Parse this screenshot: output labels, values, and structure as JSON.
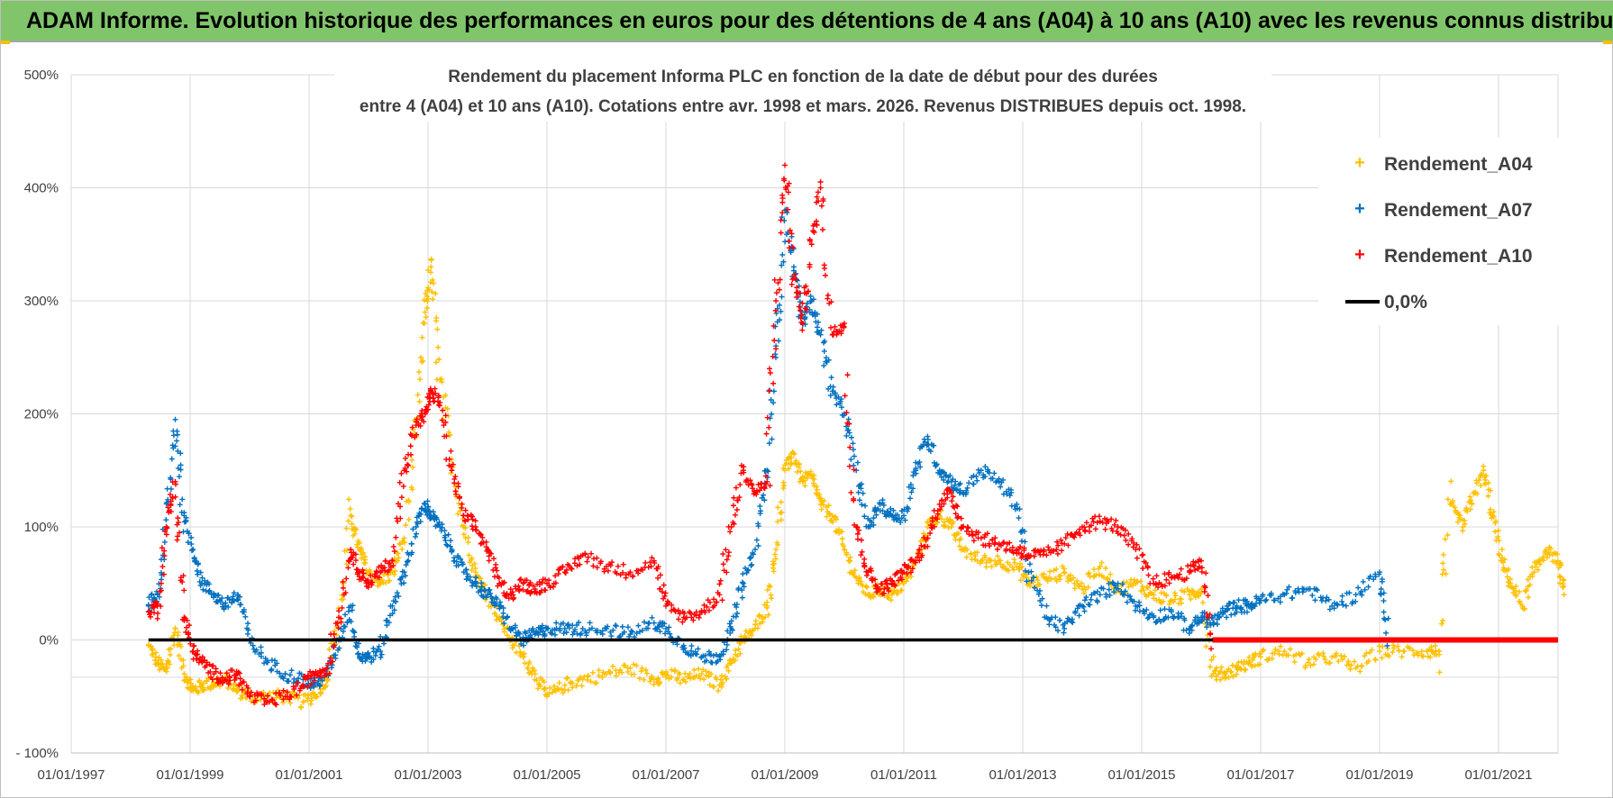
{
  "banner": {
    "text": "ADAM Informe. Evolution historique des performances en euros pour des détentions de 4 ans (A04) à 10 ans (A10) avec les revenus connus distribués"
  },
  "colors": {
    "a04": "#ffc000",
    "a07": "#0070c0",
    "a10": "#ff0000",
    "zero": "#000000",
    "banner": "#80c56a",
    "grid": "#d9d9d9"
  },
  "chart_data": {
    "type": "scatter",
    "title": [
      "Rendement du placement Informa PLC en fonction de la date de début pour des durées",
      "entre 4 (A04) et 10 ans (A10).  Cotations entre avr. 1998 et mars. 2026. Revenus DISTRIBUES depuis oct. 1998."
    ],
    "xlabel": "",
    "ylabel": "",
    "xlim": [
      1997.0,
      2022.0
    ],
    "ylim": [
      -100,
      500
    ],
    "x_ticks": [
      {
        "value": 1997.0,
        "label": "01/01/1997"
      },
      {
        "value": 1999.0,
        "label": "01/01/1999"
      },
      {
        "value": 2001.0,
        "label": "01/01/2001"
      },
      {
        "value": 2003.0,
        "label": "01/01/2003"
      },
      {
        "value": 2005.0,
        "label": "01/01/2005"
      },
      {
        "value": 2007.0,
        "label": "01/01/2007"
      },
      {
        "value": 2009.0,
        "label": "01/01/2009"
      },
      {
        "value": 2011.0,
        "label": "01/01/2011"
      },
      {
        "value": 2013.0,
        "label": "01/01/2013"
      },
      {
        "value": 2015.0,
        "label": "01/01/2015"
      },
      {
        "value": 2017.0,
        "label": "01/01/2017"
      },
      {
        "value": 2019.0,
        "label": "01/01/2019"
      },
      {
        "value": 2021.0,
        "label": "01/01/2021"
      }
    ],
    "y_ticks": [
      {
        "value": 500,
        "label": "500%"
      },
      {
        "value": 400,
        "label": "400%"
      },
      {
        "value": 300,
        "label": "300%"
      },
      {
        "value": 200,
        "label": "200%"
      },
      {
        "value": 100,
        "label": "100%"
      },
      {
        "value": 0,
        "label": "0%"
      },
      {
        "value": -100,
        "label": "- 100%"
      }
    ],
    "grid": true,
    "legend_position": "top-right",
    "series": [
      {
        "name": "Rendement_A04",
        "marker": "plus",
        "x": [
          1998.3,
          1998.45,
          1998.6,
          1998.75,
          1998.9,
          1999.05,
          1999.2,
          1999.4,
          1999.6,
          1999.8,
          2000.0,
          2000.3,
          2000.6,
          2000.9,
          2001.1,
          2001.3,
          2001.5,
          2001.7,
          2001.85,
          2002.0,
          2002.2,
          2002.4,
          2002.6,
          2002.8,
          2002.95,
          2003.05,
          2003.2,
          2003.4,
          2003.6,
          2003.8,
          2004.0,
          2004.2,
          2004.4,
          2004.6,
          2004.8,
          2005.0,
          2005.3,
          2005.6,
          2006.0,
          2006.4,
          2006.8,
          2007.0,
          2007.3,
          2007.6,
          2007.9,
          2008.1,
          2008.3,
          2008.5,
          2008.7,
          2008.85,
          2009.0,
          2009.15,
          2009.3,
          2009.45,
          2009.6,
          2009.8,
          2010.0,
          2010.2,
          2010.4,
          2010.6,
          2010.8,
          2011.0,
          2011.2,
          2011.4,
          2011.6,
          2011.8,
          2012.0,
          2012.3,
          2012.6,
          2012.9,
          2013.1,
          2013.4,
          2013.7,
          2014.0,
          2014.3,
          2014.6,
          2014.9,
          2015.2,
          2015.5,
          2015.8,
          2016.0,
          2016.2,
          2016.4,
          2016.6,
          2016.8,
          2017.0,
          2017.4,
          2017.8,
          2018.2,
          2018.6,
          2019.0,
          2019.4,
          2019.8,
          2020.0,
          2020.2,
          2020.4,
          2020.6,
          2020.75,
          2020.9,
          2021.05,
          2021.2,
          2021.4,
          2021.6,
          2021.8,
          2022.0,
          2022.1
        ],
        "y": [
          -5,
          -20,
          -28,
          10,
          -30,
          -45,
          -40,
          -38,
          -35,
          -45,
          -50,
          -50,
          -50,
          -55,
          -48,
          -35,
          20,
          110,
          80,
          60,
          50,
          60,
          90,
          180,
          290,
          330,
          230,
          160,
          100,
          60,
          40,
          20,
          0,
          -15,
          -30,
          -50,
          -40,
          -35,
          -30,
          -25,
          -35,
          -30,
          -35,
          -30,
          -40,
          -20,
          0,
          10,
          30,
          80,
          150,
          165,
          140,
          145,
          120,
          110,
          80,
          55,
          40,
          45,
          40,
          50,
          70,
          100,
          110,
          100,
          80,
          70,
          70,
          65,
          50,
          55,
          60,
          45,
          65,
          45,
          50,
          40,
          35,
          40,
          45,
          -30,
          -30,
          -25,
          -20,
          -15,
          -10,
          -20,
          -15,
          -25,
          -10,
          -10,
          -10,
          -10,
          120,
          100,
          130,
          150,
          110,
          70,
          50,
          30,
          60,
          80,
          70,
          40
        ]
      },
      {
        "name": "Rendement_A07",
        "marker": "plus",
        "x": [
          1998.3,
          1998.45,
          1998.6,
          1998.75,
          1998.9,
          1999.05,
          1999.2,
          1999.4,
          1999.6,
          1999.8,
          2000.0,
          2000.3,
          2000.6,
          2000.9,
          2001.1,
          2001.3,
          2001.5,
          2001.7,
          2001.85,
          2002.0,
          2002.2,
          2002.4,
          2002.6,
          2002.8,
          2002.95,
          2003.05,
          2003.2,
          2003.4,
          2003.6,
          2003.8,
          2004.0,
          2004.2,
          2004.4,
          2004.6,
          2004.8,
          2005.0,
          2005.3,
          2005.6,
          2006.0,
          2006.4,
          2006.8,
          2007.0,
          2007.3,
          2007.6,
          2007.9,
          2008.1,
          2008.3,
          2008.5,
          2008.7,
          2008.85,
          2009.0,
          2009.15,
          2009.3,
          2009.45,
          2009.6,
          2009.8,
          2010.0,
          2010.2,
          2010.4,
          2010.6,
          2010.8,
          2011.0,
          2011.2,
          2011.4,
          2011.6,
          2011.8,
          2012.0,
          2012.3,
          2012.6,
          2012.9,
          2013.1,
          2013.4,
          2013.7,
          2014.0,
          2014.3,
          2014.6,
          2014.9,
          2015.2,
          2015.5,
          2015.8,
          2016.0,
          2016.2,
          2016.4,
          2016.6,
          2016.8,
          2017.0,
          2017.4,
          2017.8,
          2018.2,
          2018.6,
          2019.0,
          2019.15
        ],
        "y": [
          30,
          40,
          100,
          195,
          110,
          80,
          50,
          40,
          30,
          40,
          0,
          -20,
          -30,
          -35,
          -40,
          -30,
          0,
          30,
          -15,
          -15,
          -10,
          30,
          60,
          100,
          120,
          110,
          100,
          80,
          60,
          50,
          40,
          30,
          10,
          0,
          5,
          10,
          10,
          10,
          10,
          5,
          15,
          10,
          -5,
          -15,
          -15,
          10,
          50,
          80,
          150,
          260,
          380,
          330,
          280,
          300,
          270,
          220,
          200,
          150,
          100,
          120,
          110,
          110,
          150,
          180,
          150,
          140,
          130,
          150,
          140,
          120,
          60,
          20,
          10,
          30,
          40,
          50,
          30,
          20,
          25,
          10,
          20,
          15,
          25,
          30,
          30,
          35,
          40,
          45,
          30,
          40,
          60,
          0
        ]
      },
      {
        "name": "Rendement_A10",
        "marker": "plus",
        "x": [
          1998.3,
          1998.45,
          1998.6,
          1998.75,
          1998.9,
          1999.05,
          1999.2,
          1999.4,
          1999.6,
          1999.8,
          2000.0,
          2000.3,
          2000.6,
          2000.9,
          2001.1,
          2001.3,
          2001.5,
          2001.7,
          2001.85,
          2002.0,
          2002.2,
          2002.4,
          2002.6,
          2002.8,
          2002.95,
          2003.05,
          2003.2,
          2003.4,
          2003.6,
          2003.8,
          2004.0,
          2004.2,
          2004.4,
          2004.6,
          2004.8,
          2005.0,
          2005.3,
          2005.6,
          2006.0,
          2006.4,
          2006.8,
          2007.0,
          2007.3,
          2007.6,
          2007.9,
          2008.1,
          2008.3,
          2008.5,
          2008.7,
          2008.85,
          2009.0,
          2009.15,
          2009.3,
          2009.45,
          2009.6,
          2009.8,
          2010.0,
          2010.2,
          2010.4,
          2010.6,
          2010.8,
          2011.0,
          2011.2,
          2011.4,
          2011.6,
          2011.8,
          2012.0,
          2012.3,
          2012.6,
          2012.9,
          2013.1,
          2013.4,
          2013.7,
          2014.0,
          2014.3,
          2014.6,
          2014.9,
          2015.2,
          2015.5,
          2015.8,
          2016.0,
          2016.2
        ],
        "y": [
          25,
          30,
          100,
          140,
          20,
          -10,
          -20,
          -30,
          -35,
          -30,
          -50,
          -55,
          -50,
          -40,
          -30,
          -25,
          20,
          80,
          60,
          50,
          60,
          70,
          150,
          190,
          200,
          220,
          210,
          150,
          110,
          100,
          80,
          50,
          40,
          50,
          45,
          50,
          60,
          75,
          65,
          60,
          70,
          30,
          20,
          25,
          40,
          100,
          150,
          130,
          140,
          300,
          420,
          320,
          280,
          350,
          400,
          270,
          280,
          100,
          60,
          45,
          50,
          60,
          70,
          90,
          120,
          130,
          100,
          90,
          85,
          80,
          75,
          75,
          85,
          100,
          105,
          100,
          80,
          50,
          55,
          60,
          70,
          0
        ]
      },
      {
        "name": "0,0%",
        "marker": "line",
        "x": [
          1998.3,
          2022.0
        ],
        "y": [
          0,
          0
        ]
      }
    ],
    "zero_red_band": {
      "from": 2016.2,
      "to": 2022.0,
      "value": 0
    }
  }
}
